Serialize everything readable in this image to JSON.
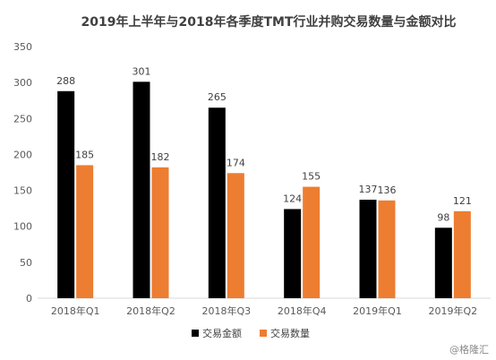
{
  "chart_data": {
    "type": "bar",
    "title": "2019年上半年与2018年各季度TMT行业并购交易数量与金额对比",
    "categories": [
      "2018年Q1",
      "2018年Q2",
      "2018年Q3",
      "2018年Q4",
      "2019年Q1",
      "2019年Q2"
    ],
    "series": [
      {
        "name": "交易金额",
        "values": [
          288,
          301,
          265,
          124,
          137,
          98
        ],
        "color": "#000000"
      },
      {
        "name": "交易数量",
        "values": [
          185,
          182,
          174,
          155,
          136,
          121
        ],
        "color": "#ED7D31"
      }
    ],
    "ylim": [
      0,
      350
    ],
    "yticks": [
      0,
      50,
      100,
      150,
      200,
      250,
      300,
      350
    ],
    "grid": false,
    "legend": "bottom",
    "data_labels": true
  },
  "watermark": "@格隆汇"
}
